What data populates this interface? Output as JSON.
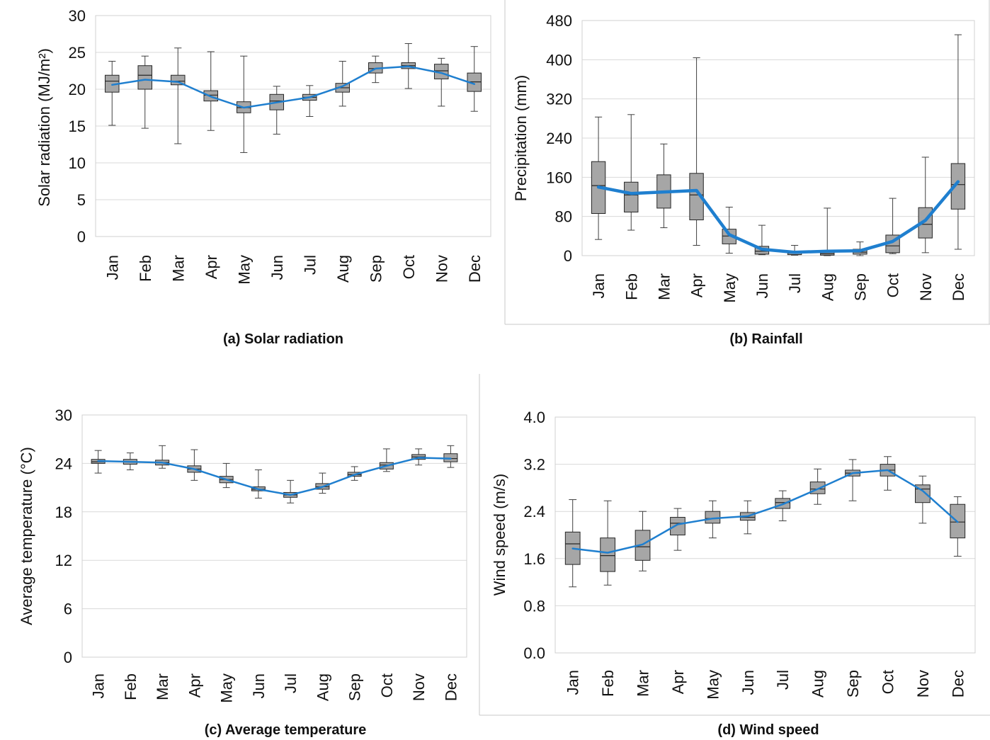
{
  "chart_data": [
    {
      "type": "box",
      "title": "(a) Solar radiation",
      "ylabel": "Solar radiation (MJ/m²)",
      "ylim": [
        0,
        30
      ],
      "yticks": [
        "0",
        "5",
        "10",
        "15",
        "20",
        "25",
        "30"
      ],
      "grid": true,
      "categories": [
        "Jan",
        "Feb",
        "Mar",
        "Apr",
        "May",
        "Jun",
        "Jul",
        "Aug",
        "Sep",
        "Oct",
        "Nov",
        "Dec"
      ],
      "boxes": [
        {
          "min": 15.1,
          "q1": 19.6,
          "median": 21.1,
          "q3": 21.9,
          "max": 23.8
        },
        {
          "min": 14.7,
          "q1": 20.0,
          "median": 21.9,
          "q3": 23.2,
          "max": 24.5
        },
        {
          "min": 12.6,
          "q1": 20.6,
          "median": 21.1,
          "q3": 21.9,
          "max": 25.6
        },
        {
          "min": 14.4,
          "q1": 18.4,
          "median": 19.2,
          "q3": 19.8,
          "max": 25.1
        },
        {
          "min": 11.4,
          "q1": 16.8,
          "median": 17.5,
          "q3": 18.3,
          "max": 24.5
        },
        {
          "min": 13.9,
          "q1": 17.2,
          "median": 18.4,
          "q3": 19.3,
          "max": 20.4
        },
        {
          "min": 16.3,
          "q1": 18.5,
          "median": 18.9,
          "q3": 19.3,
          "max": 20.5
        },
        {
          "min": 17.7,
          "q1": 19.6,
          "median": 20.2,
          "q3": 20.8,
          "max": 23.8
        },
        {
          "min": 20.9,
          "q1": 22.2,
          "median": 22.8,
          "q3": 23.6,
          "max": 24.5
        },
        {
          "min": 20.1,
          "q1": 22.8,
          "median": 23.2,
          "q3": 23.6,
          "max": 26.2
        },
        {
          "min": 17.7,
          "q1": 21.4,
          "median": 22.5,
          "q3": 23.4,
          "max": 24.2
        },
        {
          "min": 17.0,
          "q1": 19.7,
          "median": 21.0,
          "q3": 22.2,
          "max": 25.8
        }
      ],
      "mean": [
        20.6,
        21.3,
        21.0,
        19.0,
        17.5,
        18.2,
        18.9,
        20.4,
        22.8,
        23.1,
        22.2,
        20.7
      ]
    },
    {
      "type": "box",
      "title": "(b) Rainfall",
      "ylabel": "Precipitation (mm)",
      "ylim": [
        0,
        480
      ],
      "yticks": [
        "0",
        "80",
        "160",
        "240",
        "320",
        "400",
        "480"
      ],
      "grid": true,
      "categories": [
        "Jan",
        "Feb",
        "Mar",
        "Apr",
        "May",
        "Jun",
        "Jul",
        "Aug",
        "Sep",
        "Oct",
        "Nov",
        "Dec"
      ],
      "boxes": [
        {
          "min": 33,
          "q1": 86,
          "median": 143,
          "q3": 192,
          "max": 283
        },
        {
          "min": 52,
          "q1": 89,
          "median": 124,
          "q3": 150,
          "max": 288
        },
        {
          "min": 57,
          "q1": 97,
          "median": 130,
          "q3": 165,
          "max": 228
        },
        {
          "min": 21,
          "q1": 73,
          "median": 124,
          "q3": 168,
          "max": 404
        },
        {
          "min": 5,
          "q1": 24,
          "median": 40,
          "q3": 54,
          "max": 99
        },
        {
          "min": 2,
          "q1": 3,
          "median": 9,
          "q3": 19,
          "max": 62
        },
        {
          "min": 1,
          "q1": 2,
          "median": 5,
          "q3": 8,
          "max": 21
        },
        {
          "min": 0,
          "q1": 1,
          "median": 4,
          "q3": 9,
          "max": 97
        },
        {
          "min": 0,
          "q1": 3,
          "median": 7,
          "q3": 13,
          "max": 28
        },
        {
          "min": 4,
          "q1": 6,
          "median": 20,
          "q3": 42,
          "max": 117
        },
        {
          "min": 6,
          "q1": 36,
          "median": 64,
          "q3": 98,
          "max": 201
        },
        {
          "min": 13,
          "q1": 95,
          "median": 145,
          "q3": 188,
          "max": 451
        }
      ],
      "mean": [
        140,
        127,
        130,
        133,
        43,
        13,
        7,
        9,
        10,
        29,
        72,
        151
      ]
    },
    {
      "type": "box",
      "title": "(c) Average temperature",
      "ylabel": "Average temperature (°C)",
      "ylim": [
        0,
        30
      ],
      "yticks": [
        "0",
        "6",
        "12",
        "18",
        "24",
        "30"
      ],
      "grid": true,
      "categories": [
        "Jan",
        "Feb",
        "Mar",
        "Apr",
        "May",
        "Jun",
        "Jul",
        "Aug",
        "Sep",
        "Oct",
        "Nov",
        "Dec"
      ],
      "boxes": [
        {
          "min": 22.8,
          "q1": 24.0,
          "median": 24.2,
          "q3": 24.5,
          "max": 25.6
        },
        {
          "min": 23.2,
          "q1": 23.9,
          "median": 24.2,
          "q3": 24.5,
          "max": 25.3
        },
        {
          "min": 23.4,
          "q1": 23.8,
          "median": 24.1,
          "q3": 24.4,
          "max": 26.2
        },
        {
          "min": 21.9,
          "q1": 22.9,
          "median": 23.3,
          "q3": 23.7,
          "max": 25.7
        },
        {
          "min": 21.0,
          "q1": 21.6,
          "median": 22.0,
          "q3": 22.4,
          "max": 24.0
        },
        {
          "min": 19.7,
          "q1": 20.6,
          "median": 20.8,
          "q3": 21.1,
          "max": 23.2
        },
        {
          "min": 19.1,
          "q1": 19.8,
          "median": 20.1,
          "q3": 20.4,
          "max": 21.9
        },
        {
          "min": 20.3,
          "q1": 20.8,
          "median": 21.1,
          "q3": 21.5,
          "max": 22.8
        },
        {
          "min": 21.9,
          "q1": 22.4,
          "median": 22.6,
          "q3": 22.9,
          "max": 23.6
        },
        {
          "min": 23.0,
          "q1": 23.3,
          "median": 23.8,
          "q3": 24.1,
          "max": 25.8
        },
        {
          "min": 23.8,
          "q1": 24.5,
          "median": 24.8,
          "q3": 25.1,
          "max": 25.8
        },
        {
          "min": 23.5,
          "q1": 24.2,
          "median": 24.6,
          "q3": 25.2,
          "max": 26.2
        }
      ],
      "mean": [
        24.3,
        24.2,
        24.1,
        23.3,
        22.0,
        20.8,
        20.1,
        21.1,
        22.6,
        23.7,
        24.7,
        24.6
      ]
    },
    {
      "type": "box",
      "title": "(d) Wind speed",
      "ylabel": "Wind speed (m/s)",
      "ylim": [
        0,
        4
      ],
      "yticks": [
        "0.0",
        "0.8",
        "1.6",
        "2.4",
        "3.2",
        "4.0"
      ],
      "grid": true,
      "categories": [
        "Jan",
        "Feb",
        "Mar",
        "Apr",
        "May",
        "Jun",
        "Jul",
        "Aug",
        "Sep",
        "Oct",
        "Nov",
        "Dec"
      ],
      "boxes": [
        {
          "min": 1.12,
          "q1": 1.5,
          "median": 1.85,
          "q3": 2.05,
          "max": 2.6
        },
        {
          "min": 1.15,
          "q1": 1.38,
          "median": 1.65,
          "q3": 1.95,
          "max": 2.58
        },
        {
          "min": 1.39,
          "q1": 1.57,
          "median": 1.8,
          "q3": 2.08,
          "max": 2.4
        },
        {
          "min": 1.74,
          "q1": 2.0,
          "median": 2.2,
          "q3": 2.3,
          "max": 2.45
        },
        {
          "min": 1.95,
          "q1": 2.2,
          "median": 2.28,
          "q3": 2.4,
          "max": 2.58
        },
        {
          "min": 2.02,
          "q1": 2.25,
          "median": 2.3,
          "q3": 2.38,
          "max": 2.58
        },
        {
          "min": 2.24,
          "q1": 2.45,
          "median": 2.55,
          "q3": 2.62,
          "max": 2.75
        },
        {
          "min": 2.52,
          "q1": 2.7,
          "median": 2.78,
          "q3": 2.9,
          "max": 3.12
        },
        {
          "min": 2.58,
          "q1": 3.0,
          "median": 3.05,
          "q3": 3.1,
          "max": 3.28
        },
        {
          "min": 2.76,
          "q1": 3.0,
          "median": 3.1,
          "q3": 3.2,
          "max": 3.33
        },
        {
          "min": 2.2,
          "q1": 2.55,
          "median": 2.78,
          "q3": 2.85,
          "max": 3.0
        },
        {
          "min": 1.64,
          "q1": 1.95,
          "median": 2.22,
          "q3": 2.52,
          "max": 2.65
        }
      ],
      "mean": [
        1.77,
        1.7,
        1.84,
        2.18,
        2.28,
        2.32,
        2.52,
        2.78,
        3.05,
        3.1,
        2.75,
        2.22
      ]
    }
  ],
  "colors": {
    "box_fill": "#a6a6a6",
    "box_stroke": "#262626",
    "whisker": "#404040",
    "mean_line": "#1f7fcf",
    "grid": "#d9d9d9",
    "frame": "#c8c8c8"
  },
  "icons": []
}
